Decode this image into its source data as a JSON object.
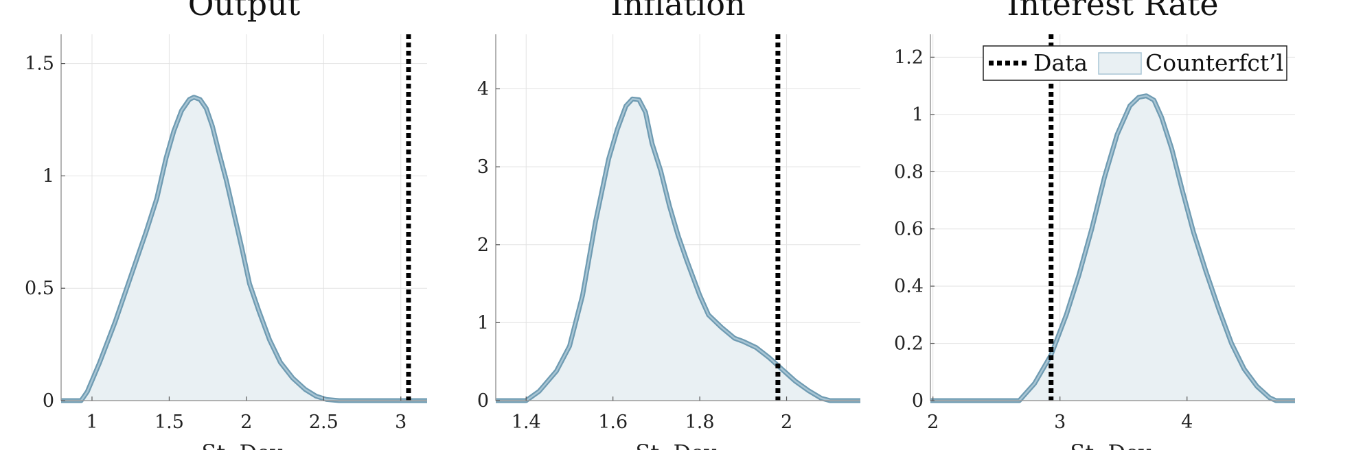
{
  "figure": {
    "colors": {
      "fill": "#e9f0f3",
      "curve_outer": "#6f9bb2",
      "curve_inner": "#a9c6d5",
      "data_line": "#000000",
      "grid": "#e2e2e2",
      "axis": "#9a9a9a"
    },
    "legend": {
      "placement": "top-right of third panel",
      "items": [
        {
          "label": "Data",
          "style": "dotted-line"
        },
        {
          "label": "Counterfct’l",
          "style": "filled-area"
        }
      ]
    }
  },
  "chart_data": [
    {
      "type": "area",
      "title": "Output",
      "xlabel": "St. Dev.",
      "ylabel": "",
      "xlim": [
        0.8,
        3.17
      ],
      "ylim": [
        0,
        1.63
      ],
      "xticks": [
        1,
        1.5,
        2,
        2.5,
        3
      ],
      "yticks": [
        0,
        0.5,
        1,
        1.5
      ],
      "grid": true,
      "data_value": 3.05,
      "series": [
        {
          "name": "Counterfct’l",
          "x": [
            0.8,
            0.93,
            0.97,
            1.05,
            1.15,
            1.25,
            1.35,
            1.42,
            1.48,
            1.53,
            1.58,
            1.63,
            1.66,
            1.7,
            1.74,
            1.78,
            1.82,
            1.87,
            1.92,
            1.97,
            2.02,
            2.08,
            2.15,
            2.22,
            2.3,
            2.38,
            2.45,
            2.52,
            2.6,
            3.17
          ],
          "y": [
            0,
            0,
            0.04,
            0.17,
            0.35,
            0.55,
            0.75,
            0.9,
            1.08,
            1.2,
            1.29,
            1.34,
            1.35,
            1.34,
            1.3,
            1.22,
            1.11,
            0.98,
            0.83,
            0.68,
            0.52,
            0.4,
            0.27,
            0.17,
            0.1,
            0.05,
            0.02,
            0.005,
            0,
            0
          ]
        }
      ]
    },
    {
      "type": "area",
      "title": "Inflation",
      "xlabel": "St. Dev.",
      "ylabel": "",
      "xlim": [
        1.33,
        2.17
      ],
      "ylim": [
        0,
        4.7
      ],
      "xticks": [
        1.4,
        1.6,
        1.8,
        2
      ],
      "yticks": [
        0,
        1,
        2,
        3,
        4
      ],
      "grid": true,
      "data_value": 1.98,
      "series": [
        {
          "name": "Counterfct’l",
          "x": [
            1.33,
            1.4,
            1.43,
            1.47,
            1.5,
            1.53,
            1.56,
            1.59,
            1.61,
            1.63,
            1.645,
            1.66,
            1.675,
            1.69,
            1.71,
            1.73,
            1.75,
            1.77,
            1.8,
            1.82,
            1.85,
            1.88,
            1.9,
            1.93,
            1.96,
            1.99,
            2.02,
            2.05,
            2.08,
            2.1,
            2.17
          ],
          "y": [
            0,
            0,
            0.12,
            0.38,
            0.7,
            1.35,
            2.3,
            3.1,
            3.48,
            3.78,
            3.87,
            3.86,
            3.7,
            3.3,
            2.95,
            2.5,
            2.12,
            1.8,
            1.35,
            1.1,
            0.94,
            0.8,
            0.76,
            0.68,
            0.55,
            0.4,
            0.25,
            0.13,
            0.03,
            0,
            0
          ]
        }
      ]
    },
    {
      "type": "area",
      "title": "Interest Rate",
      "xlabel": "St. Dev.",
      "ylabel": "",
      "xlim": [
        1.98,
        4.85
      ],
      "ylim": [
        0,
        1.28
      ],
      "xticks": [
        2,
        3,
        4
      ],
      "yticks": [
        0,
        0.2,
        0.4,
        0.6,
        0.8,
        1,
        1.2
      ],
      "grid": true,
      "data_value": 2.93,
      "series": [
        {
          "name": "Counterfct’l",
          "x": [
            1.98,
            2.68,
            2.8,
            2.93,
            3.05,
            3.15,
            3.25,
            3.35,
            3.45,
            3.55,
            3.62,
            3.68,
            3.74,
            3.8,
            3.88,
            3.96,
            4.05,
            4.15,
            4.25,
            4.35,
            4.45,
            4.55,
            4.65,
            4.7,
            4.85
          ],
          "y": [
            0,
            0,
            0.06,
            0.16,
            0.3,
            0.44,
            0.6,
            0.78,
            0.93,
            1.03,
            1.06,
            1.065,
            1.05,
            0.99,
            0.88,
            0.74,
            0.59,
            0.45,
            0.32,
            0.2,
            0.11,
            0.05,
            0.01,
            0,
            0
          ]
        }
      ]
    }
  ]
}
